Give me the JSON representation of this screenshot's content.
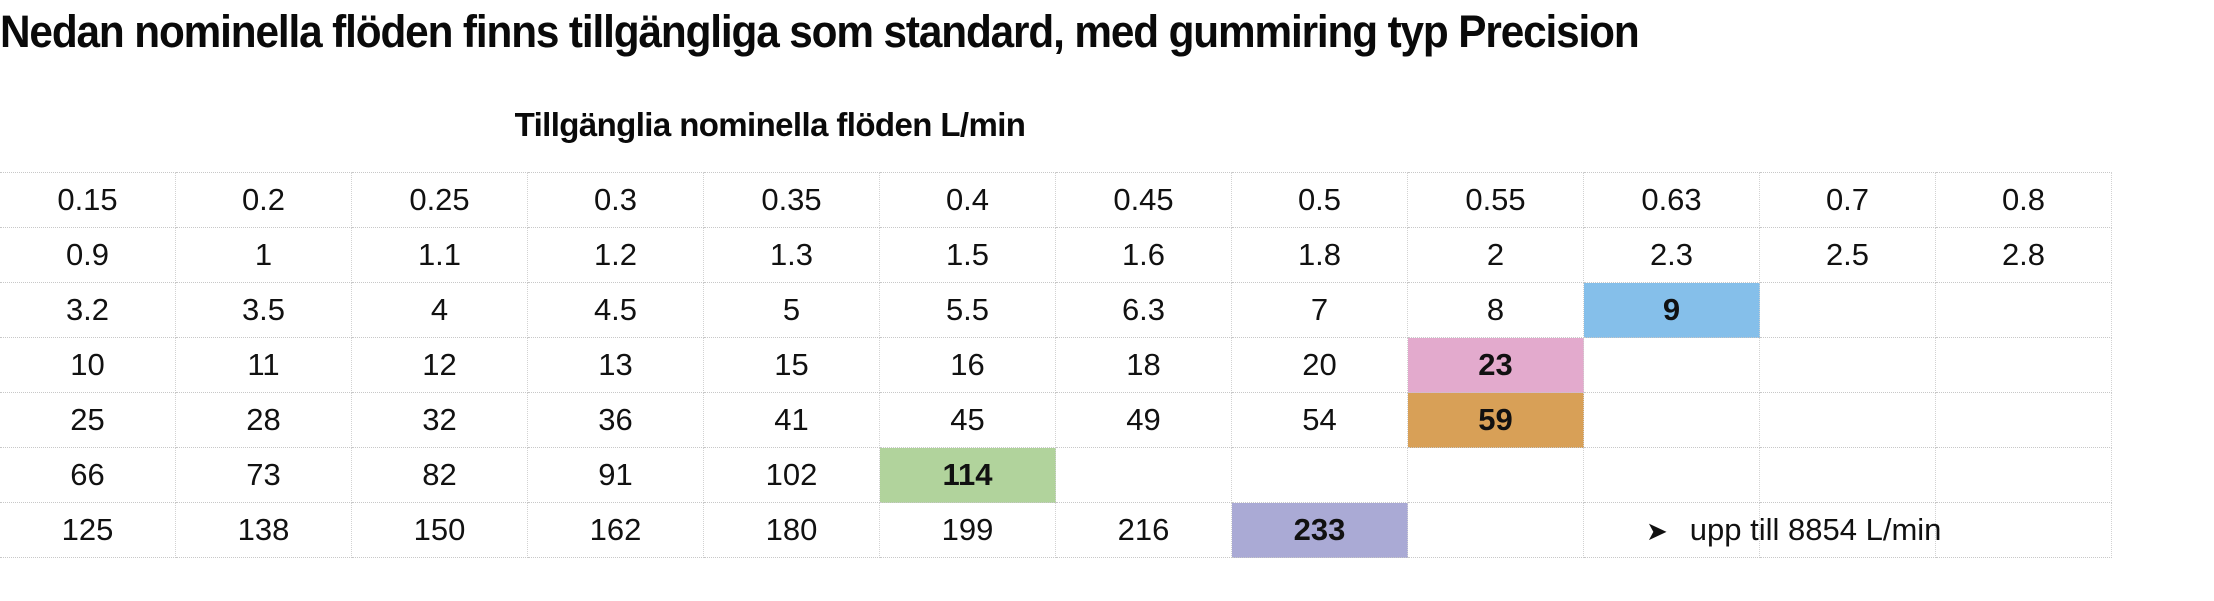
{
  "heading": "Nedan nominella flöden finns tillgängliga som standard, med gummiring typ Precision",
  "subheading": "Tillgänglia nominella flöden L/min",
  "rows": [
    [
      "0.15",
      "0.2",
      "0.25",
      "0.3",
      "0.35",
      "0.4",
      "0.45",
      "0.5",
      "0.55",
      "0.63",
      "0.7",
      "0.8"
    ],
    [
      "0.9",
      "1",
      "1.1",
      "1.2",
      "1.3",
      "1.5",
      "1.6",
      "1.8",
      "2",
      "2.3",
      "2.5",
      "2.8"
    ],
    [
      "3.2",
      "3.5",
      "4",
      "4.5",
      "5",
      "5.5",
      "6.3",
      "7",
      "8",
      "9",
      "",
      ""
    ],
    [
      "10",
      "11",
      "12",
      "13",
      "15",
      "16",
      "18",
      "20",
      "23",
      "",
      "",
      ""
    ],
    [
      "25",
      "28",
      "32",
      "36",
      "41",
      "45",
      "49",
      "54",
      "59",
      "",
      "",
      ""
    ],
    [
      "66",
      "73",
      "82",
      "91",
      "102",
      "114",
      "",
      "",
      "",
      "",
      "",
      ""
    ],
    [
      "125",
      "138",
      "150",
      "162",
      "180",
      "199",
      "216",
      "233",
      "",
      "",
      "",
      ""
    ]
  ],
  "highlights": [
    {
      "row": 2,
      "col": 9,
      "color": "#85bfea"
    },
    {
      "row": 3,
      "col": 8,
      "color": "#e3aacd"
    },
    {
      "row": 4,
      "col": 8,
      "color": "#d8a057"
    },
    {
      "row": 5,
      "col": 5,
      "color": "#b1d39c"
    },
    {
      "row": 6,
      "col": 7,
      "color": "#aaaad5"
    }
  ],
  "note": {
    "row": 6,
    "col": 9,
    "icon": "arrowhead-icon",
    "glyph": "➤",
    "text": "upp till 8854 L/min"
  }
}
